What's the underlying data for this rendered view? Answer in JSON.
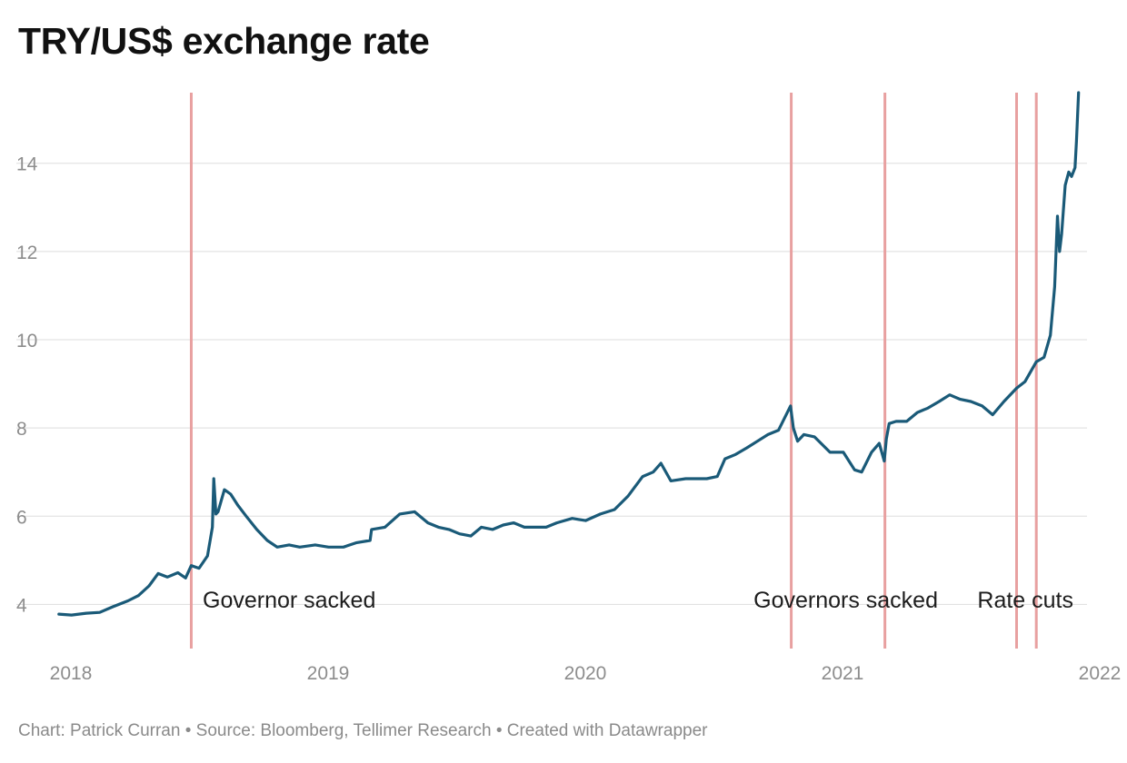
{
  "chart_data": {
    "type": "line",
    "title": "TRY/US$ exchange rate",
    "xlabel": "",
    "ylabel": "",
    "xlim": [
      "2018-01-01",
      "2022-01-01"
    ],
    "ylim": [
      3,
      15.6
    ],
    "grid": true,
    "x_ticks": [
      "2018",
      "2019",
      "2020",
      "2021",
      "2022"
    ],
    "y_ticks": [
      4,
      6,
      8,
      10,
      12,
      14
    ],
    "series": [
      {
        "color": "#1a5a78",
        "x": [
          "2018-01-02",
          "2018-01-20",
          "2018-02-10",
          "2018-03-01",
          "2018-03-20",
          "2018-04-10",
          "2018-04-25",
          "2018-05-10",
          "2018-05-23",
          "2018-06-05",
          "2018-06-20",
          "2018-07-01",
          "2018-07-09",
          "2018-07-20",
          "2018-08-01",
          "2018-08-08",
          "2018-08-10",
          "2018-08-13",
          "2018-08-16",
          "2018-08-25",
          "2018-09-03",
          "2018-09-13",
          "2018-09-25",
          "2018-10-10",
          "2018-10-25",
          "2018-11-08",
          "2018-11-25",
          "2018-12-10",
          "2019-01-01",
          "2019-01-20",
          "2019-02-10",
          "2019-03-01",
          "2019-03-20",
          "2019-03-22",
          "2019-04-10",
          "2019-05-01",
          "2019-05-22",
          "2019-06-10",
          "2019-06-25",
          "2019-07-10",
          "2019-07-25",
          "2019-08-10",
          "2019-08-25",
          "2019-09-10",
          "2019-09-25",
          "2019-10-10",
          "2019-10-25",
          "2019-11-10",
          "2019-11-25",
          "2019-12-10",
          "2020-01-01",
          "2020-01-20",
          "2020-02-10",
          "2020-03-01",
          "2020-03-20",
          "2020-04-10",
          "2020-04-25",
          "2020-05-06",
          "2020-05-20",
          "2020-06-10",
          "2020-06-25",
          "2020-07-10",
          "2020-07-25",
          "2020-08-05",
          "2020-08-20",
          "2020-09-05",
          "2020-09-20",
          "2020-10-05",
          "2020-10-20",
          "2020-11-06",
          "2020-11-10",
          "2020-11-16",
          "2020-11-25",
          "2020-12-10",
          "2021-01-01",
          "2021-01-20",
          "2021-02-05",
          "2021-02-15",
          "2021-03-01",
          "2021-03-12",
          "2021-03-19",
          "2021-03-22",
          "2021-03-26",
          "2021-04-05",
          "2021-04-20",
          "2021-05-05",
          "2021-05-20",
          "2021-06-05",
          "2021-06-20",
          "2021-07-05",
          "2021-07-20",
          "2021-08-05",
          "2021-08-20",
          "2021-09-05",
          "2021-09-23",
          "2021-10-05",
          "2021-10-21",
          "2021-11-01",
          "2021-11-10",
          "2021-11-16",
          "2021-11-20",
          "2021-11-23",
          "2021-11-26",
          "2021-12-01",
          "2021-12-06",
          "2021-12-10",
          "2021-12-15",
          "2021-12-17",
          "2021-12-20"
        ],
        "values": [
          3.78,
          3.76,
          3.8,
          3.82,
          3.95,
          4.08,
          4.2,
          4.42,
          4.7,
          4.62,
          4.72,
          4.6,
          4.88,
          4.82,
          5.1,
          5.75,
          6.85,
          6.05,
          6.1,
          6.6,
          6.5,
          6.25,
          6.0,
          5.7,
          5.45,
          5.3,
          5.35,
          5.3,
          5.35,
          5.3,
          5.3,
          5.4,
          5.45,
          5.7,
          5.75,
          6.05,
          6.1,
          5.85,
          5.75,
          5.7,
          5.6,
          5.55,
          5.75,
          5.7,
          5.8,
          5.85,
          5.75,
          5.75,
          5.75,
          5.85,
          5.95,
          5.9,
          6.05,
          6.15,
          6.45,
          6.9,
          7.0,
          7.2,
          6.8,
          6.85,
          6.85,
          6.85,
          6.9,
          7.3,
          7.4,
          7.55,
          7.7,
          7.85,
          7.95,
          8.5,
          8.0,
          7.7,
          7.85,
          7.8,
          7.45,
          7.45,
          7.05,
          7.0,
          7.45,
          7.65,
          7.25,
          7.75,
          8.1,
          8.15,
          8.15,
          8.35,
          8.45,
          8.6,
          8.75,
          8.65,
          8.6,
          8.5,
          8.3,
          8.6,
          8.9,
          9.05,
          9.5,
          9.6,
          10.1,
          11.2,
          12.8,
          12.0,
          12.4,
          13.5,
          13.8,
          13.7,
          13.9,
          14.5,
          15.6
        ]
      }
    ],
    "annotations": [
      {
        "x": "2018-07-09",
        "label": "Governor sacked"
      },
      {
        "x": "2020-11-07",
        "label": "Governors sacked"
      },
      {
        "x": "2021-03-20",
        "label": ""
      },
      {
        "x": "2021-09-23",
        "label": "Rate cuts"
      },
      {
        "x": "2021-10-21",
        "label": ""
      }
    ],
    "annotation_color": "#e8a0a0"
  },
  "footer": "Chart: Patrick Curran • Source: Bloomberg, Tellimer Research • Created with Datawrapper"
}
